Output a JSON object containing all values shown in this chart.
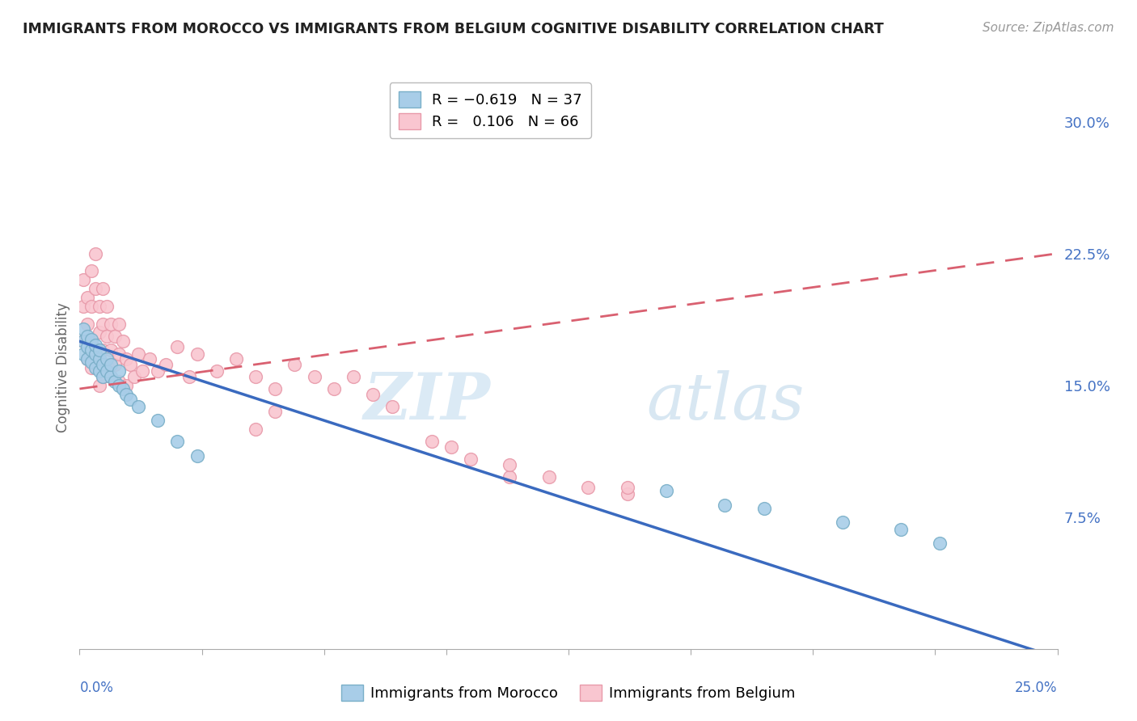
{
  "title": "IMMIGRANTS FROM MOROCCO VS IMMIGRANTS FROM BELGIUM COGNITIVE DISABILITY CORRELATION CHART",
  "source": "Source: ZipAtlas.com",
  "ylabel": "Cognitive Disability",
  "yticks": [
    0.0,
    0.075,
    0.15,
    0.225,
    0.3
  ],
  "ytick_labels": [
    "",
    "7.5%",
    "15.0%",
    "22.5%",
    "30.0%"
  ],
  "xlim": [
    0.0,
    0.25
  ],
  "ylim": [
    0.0,
    0.32
  ],
  "legend_blue_label": "R = −0.619   N = 37",
  "legend_pink_label": "R =   0.106   N = 66",
  "morocco_color": "#a8cde8",
  "belgium_color": "#f9c6d0",
  "morocco_edge": "#7aafc8",
  "belgium_edge": "#e89aaa",
  "trend_blue": "#3a6abf",
  "trend_pink": "#d96070",
  "background_color": "#ffffff",
  "grid_color": "#e0e0e0",
  "morocco_x": [
    0.001,
    0.001,
    0.001,
    0.002,
    0.002,
    0.002,
    0.003,
    0.003,
    0.003,
    0.004,
    0.004,
    0.004,
    0.005,
    0.005,
    0.005,
    0.006,
    0.006,
    0.007,
    0.007,
    0.008,
    0.008,
    0.009,
    0.01,
    0.01,
    0.011,
    0.012,
    0.013,
    0.015,
    0.02,
    0.025,
    0.03,
    0.15,
    0.165,
    0.175,
    0.195,
    0.21,
    0.22
  ],
  "morocco_y": [
    0.175,
    0.168,
    0.182,
    0.172,
    0.165,
    0.178,
    0.17,
    0.163,
    0.176,
    0.168,
    0.16,
    0.173,
    0.165,
    0.158,
    0.17,
    0.162,
    0.155,
    0.158,
    0.165,
    0.155,
    0.162,
    0.152,
    0.15,
    0.158,
    0.148,
    0.145,
    0.142,
    0.138,
    0.13,
    0.118,
    0.11,
    0.09,
    0.082,
    0.08,
    0.072,
    0.068,
    0.06
  ],
  "belgium_x": [
    0.001,
    0.001,
    0.001,
    0.002,
    0.002,
    0.002,
    0.003,
    0.003,
    0.003,
    0.003,
    0.004,
    0.004,
    0.004,
    0.005,
    0.005,
    0.005,
    0.005,
    0.006,
    0.006,
    0.006,
    0.006,
    0.007,
    0.007,
    0.007,
    0.008,
    0.008,
    0.008,
    0.009,
    0.009,
    0.01,
    0.01,
    0.01,
    0.011,
    0.012,
    0.012,
    0.013,
    0.014,
    0.015,
    0.016,
    0.018,
    0.02,
    0.022,
    0.025,
    0.028,
    0.03,
    0.035,
    0.04,
    0.045,
    0.05,
    0.055,
    0.06,
    0.065,
    0.07,
    0.075,
    0.08,
    0.09,
    0.095,
    0.1,
    0.11,
    0.13,
    0.14,
    0.045,
    0.05,
    0.11,
    0.12,
    0.14
  ],
  "belgium_y": [
    0.195,
    0.21,
    0.175,
    0.2,
    0.185,
    0.165,
    0.215,
    0.195,
    0.175,
    0.16,
    0.225,
    0.205,
    0.17,
    0.195,
    0.18,
    0.165,
    0.15,
    0.205,
    0.185,
    0.17,
    0.155,
    0.195,
    0.178,
    0.162,
    0.185,
    0.17,
    0.155,
    0.178,
    0.162,
    0.185,
    0.168,
    0.152,
    0.175,
    0.165,
    0.15,
    0.162,
    0.155,
    0.168,
    0.158,
    0.165,
    0.158,
    0.162,
    0.172,
    0.155,
    0.168,
    0.158,
    0.165,
    0.155,
    0.148,
    0.162,
    0.155,
    0.148,
    0.155,
    0.145,
    0.138,
    0.118,
    0.115,
    0.108,
    0.098,
    0.092,
    0.088,
    0.125,
    0.135,
    0.105,
    0.098,
    0.092
  ],
  "morocco_trend_x": [
    0.0,
    0.25
  ],
  "morocco_trend_y": [
    0.175,
    -0.005
  ],
  "belgium_trend_x": [
    0.0,
    0.25
  ],
  "belgium_trend_y": [
    0.148,
    0.225
  ]
}
